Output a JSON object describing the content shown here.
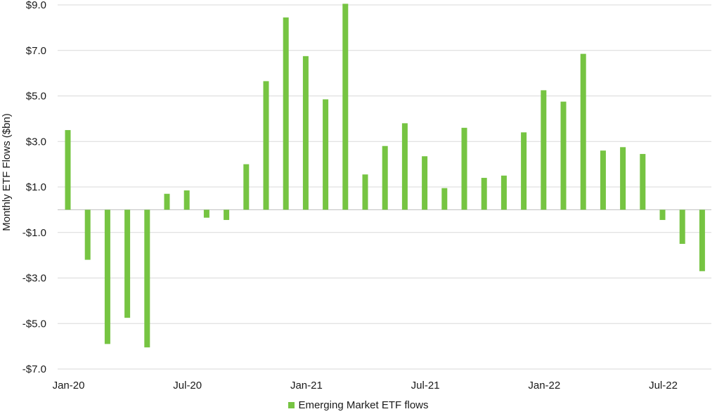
{
  "chart_data": {
    "type": "bar",
    "title": "",
    "xlabel": "",
    "ylabel": "Monthly ETF Flows ($bn)",
    "ylim": [
      -7.0,
      9.0
    ],
    "yticks": [
      -7.0,
      -5.0,
      -3.0,
      -1.0,
      1.0,
      3.0,
      5.0,
      7.0,
      9.0
    ],
    "ytick_labels": [
      "-$7.0",
      "-$5.0",
      "-$3.0",
      "-$1.0",
      "$1.0",
      "$3.0",
      "$5.0",
      "$7.0",
      "$9.0"
    ],
    "categories": [
      "Jan-20",
      "Feb-20",
      "Mar-20",
      "Apr-20",
      "May-20",
      "Jun-20",
      "Jul-20",
      "Aug-20",
      "Sep-20",
      "Oct-20",
      "Nov-20",
      "Dec-20",
      "Jan-21",
      "Feb-21",
      "Mar-21",
      "Apr-21",
      "May-21",
      "Jun-21",
      "Jul-21",
      "Aug-21",
      "Sep-21",
      "Oct-21",
      "Nov-21",
      "Dec-21",
      "Jan-22",
      "Feb-22",
      "Mar-22",
      "Apr-22",
      "May-22",
      "Jun-22",
      "Jul-22",
      "Aug-22",
      "Sep-22"
    ],
    "xtick_labels": [
      {
        "index": 0,
        "label": "Jan-20"
      },
      {
        "index": 6,
        "label": "Jul-20"
      },
      {
        "index": 12,
        "label": "Jan-21"
      },
      {
        "index": 18,
        "label": "Jul-21"
      },
      {
        "index": 24,
        "label": "Jan-22"
      },
      {
        "index": 30,
        "label": "Jul-22"
      }
    ],
    "series": [
      {
        "name": "Emerging Market ETF flows",
        "color": "#76c442",
        "values": [
          3.5,
          -2.2,
          -5.9,
          -4.75,
          -6.05,
          0.7,
          0.85,
          -0.35,
          -0.45,
          2.0,
          5.65,
          8.45,
          6.75,
          4.85,
          9.05,
          1.55,
          2.8,
          3.8,
          2.35,
          0.95,
          3.6,
          1.4,
          1.5,
          3.4,
          5.25,
          4.75,
          6.85,
          2.6,
          2.75,
          2.45,
          -0.45,
          -1.5,
          -2.7
        ]
      }
    ],
    "grid": true,
    "legend_position": "bottom-center"
  }
}
